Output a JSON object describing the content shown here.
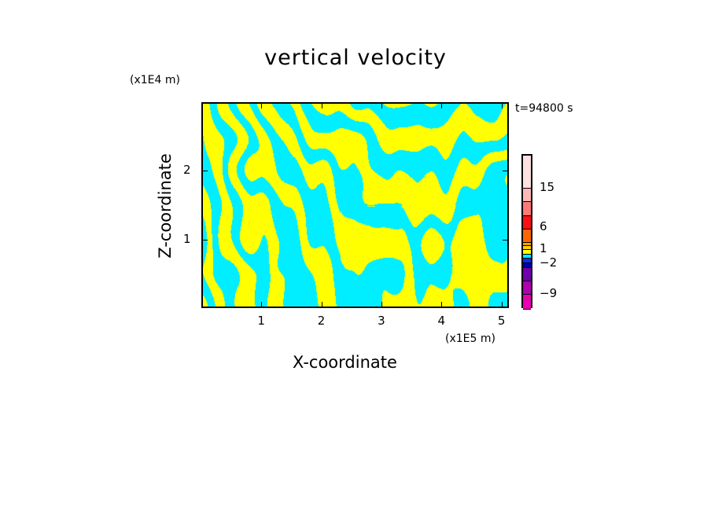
{
  "chart_data": {
    "type": "heatmap",
    "title": "vertical velocity",
    "xlabel": "X-coordinate",
    "ylabel": "Z-coordinate",
    "x_unit": "(x1E5 m)",
    "y_unit": "(x1E4 m)",
    "time_label": "t=94800 s",
    "xlim": [
      0,
      5.12
    ],
    "ylim": [
      0,
      3.0
    ],
    "x_ticks": [
      "1",
      "2",
      "3",
      "4",
      "5"
    ],
    "x_tick_values": [
      1,
      2,
      3,
      4,
      5
    ],
    "y_ticks": [
      "1",
      "2"
    ],
    "y_tick_values": [
      1,
      2
    ],
    "colorbar": {
      "labels": [
        "15",
        "6",
        "1",
        "−2",
        "−9"
      ],
      "label_values": [
        15,
        6,
        1,
        -2,
        -9
      ],
      "levels": [
        -12,
        -9,
        -6,
        -3,
        -2,
        -1,
        0,
        0.5,
        1,
        2,
        4,
        6,
        9,
        12,
        15,
        20
      ],
      "colors": [
        "#e800b0",
        "#b000b0",
        "#7000b0",
        "#0000a0",
        "#0030ff",
        "#00eeff",
        "#ffff00",
        "#ffd000",
        "#ffa000",
        "#ff6600",
        "#ff1010",
        "#ff7878",
        "#ffb8b8",
        "#ffe0e0"
      ]
    },
    "dominant_colors": {
      "negative": "#00eeff",
      "positive": "#ffff00"
    }
  }
}
